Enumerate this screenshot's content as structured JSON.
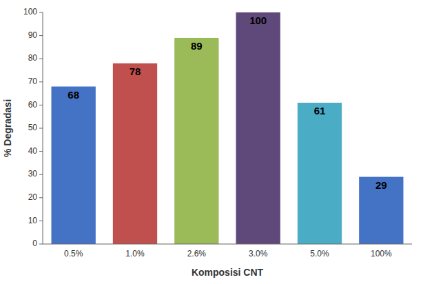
{
  "chart_data": {
    "type": "bar",
    "categories": [
      "0.5%",
      "1.0%",
      "2.6%",
      "3.0%",
      "5.0%",
      "100%"
    ],
    "values": [
      68,
      78,
      89,
      100,
      61,
      29
    ],
    "colors": [
      "#4472C4",
      "#C0504D",
      "#9BBB59",
      "#5F497A",
      "#4BACC6",
      "#4472C4"
    ],
    "xlabel": "Komposisi CNT",
    "ylabel": "% Degradasi",
    "ylim": [
      0,
      100
    ],
    "yticks": [
      0,
      10,
      20,
      30,
      40,
      50,
      60,
      70,
      80,
      90,
      100
    ],
    "grid": false,
    "data_labels": true
  }
}
